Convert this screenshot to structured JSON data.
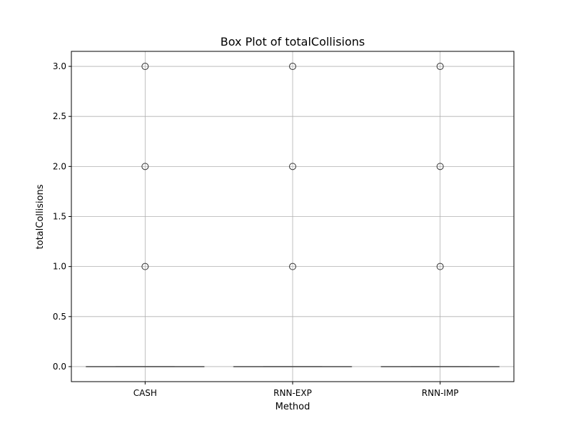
{
  "chart_data": {
    "type": "box",
    "title": "Box Plot of totalCollisions",
    "xlabel": "Method",
    "ylabel": "totalCollisions",
    "categories": [
      "CASH",
      "RNN-EXP",
      "RNN-IMP"
    ],
    "ylim": [
      -0.15,
      3.15
    ],
    "yticks": [
      0.0,
      0.5,
      1.0,
      1.5,
      2.0,
      2.5,
      3.0
    ],
    "ytick_labels": [
      "0.0",
      "0.5",
      "1.0",
      "1.5",
      "2.0",
      "2.5",
      "3.0"
    ],
    "grid": true,
    "boxes": [
      {
        "category": "CASH",
        "q1": 0,
        "median": 0,
        "q3": 0,
        "whisker_low": 0,
        "whisker_high": 0,
        "outliers": [
          1,
          2,
          3
        ]
      },
      {
        "category": "RNN-EXP",
        "q1": 0,
        "median": 0,
        "q3": 0,
        "whisker_low": 0,
        "whisker_high": 0,
        "outliers": [
          1,
          2,
          3
        ]
      },
      {
        "category": "RNN-IMP",
        "q1": 0,
        "median": 0,
        "q3": 0,
        "whisker_low": 0,
        "whisker_high": 0,
        "outliers": [
          1,
          2,
          3
        ]
      }
    ],
    "colors": {
      "box_line": "#555555",
      "outlier_edge": "#333333",
      "grid": "#b0b0b0",
      "axes": "#000000"
    }
  }
}
